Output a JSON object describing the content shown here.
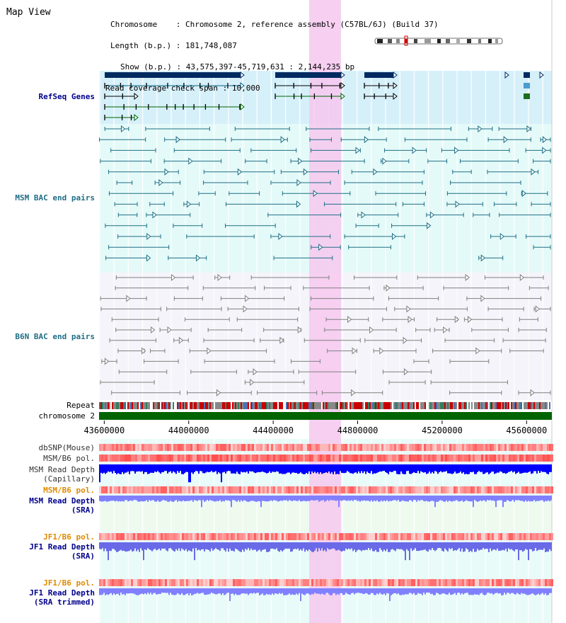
{
  "title": "Map View",
  "header": {
    "chromosome_key": "Chromosome",
    "chromosome_val": "Chromosome 2, reference assembly (C57BL/6J) (Build 37)",
    "length_key": "Length (b.p.)",
    "length_val": "181,748,087",
    "show_key": "Show (b.p.)",
    "show_val": "43,575,397-45,719,631 : 2,144,235 bp",
    "coverage_key": "Read coverage check span",
    "coverage_val": "10,000"
  },
  "tracks": {
    "refseq": "RefSeq Genes",
    "msm_bac": "MSM BAC end pairs",
    "b6n_bac": "B6N BAC end pairs",
    "repeat": "Repeat",
    "chromosome": "chromosome 2",
    "dbsnp": "dbSNP(Mouse)",
    "msm_b6_pol_1": "MSM/B6 pol.",
    "msm_depth_cap_1": "MSM Read Depth",
    "msm_depth_cap_2": "(Capillary)",
    "msm_b6_pol_2": "MSM/B6 pol.",
    "msm_depth_sra_1": "MSM Read Depth",
    "msm_depth_sra_2": "(SRA)",
    "jf1_b6_pol_1": "JF1/B6 pol.",
    "jf1_depth_sra_1": "JF1 Read Depth",
    "jf1_depth_sra_2": "(SRA)",
    "jf1_b6_pol_2": "JF1/B6 pol.",
    "jf1_depth_trim_1": "JF1 Read Depth",
    "jf1_depth_trim_2": "(SRA trimmed)"
  },
  "axis": {
    "ticks": [
      "43600000",
      "44000000",
      "44400000",
      "44800000",
      "45200000",
      "45600000"
    ]
  },
  "colors": {
    "highlight": "#f6c8ee",
    "gene_dark": "#002a60",
    "msm_line": "#1f6e86",
    "b6n_line": "#808080",
    "chrom_bar": "#006400",
    "label_blue": "#00008b",
    "label_teal": "#1f6e86",
    "label_orange": "#e08a00",
    "depth_blue": "#0000ff",
    "depth_light": "#8080ff"
  }
}
